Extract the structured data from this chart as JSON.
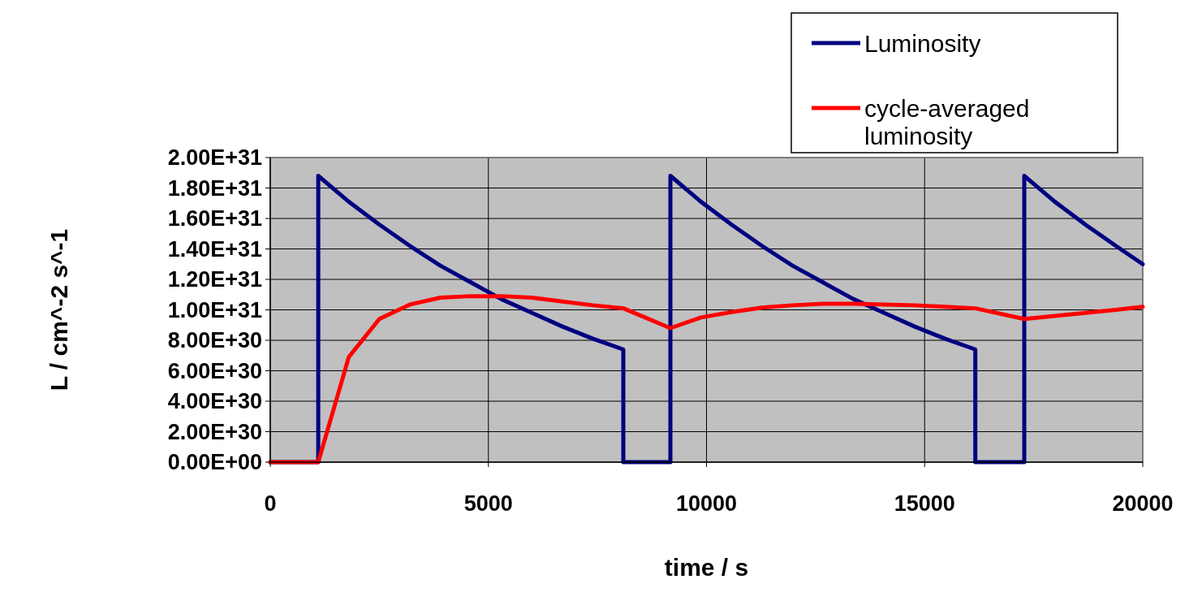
{
  "chart_data": {
    "type": "line",
    "xlabel": "time / s",
    "ylabel": "L / cm^-2 s^-1",
    "xlim": [
      0,
      20000
    ],
    "xticks": [
      0,
      5000,
      10000,
      15000,
      20000
    ],
    "ylim": [
      0,
      2e+31
    ],
    "yticks": [
      {
        "value": 0,
        "label": "0.00E+00"
      },
      {
        "value": 2e+30,
        "label": "2.00E+30"
      },
      {
        "value": 4e+30,
        "label": "4.00E+30"
      },
      {
        "value": 6e+30,
        "label": "6.00E+30"
      },
      {
        "value": 8e+30,
        "label": "8.00E+30"
      },
      {
        "value": 1e+31,
        "label": "1.00E+31"
      },
      {
        "value": 1.2e+31,
        "label": "1.20E+31"
      },
      {
        "value": 1.4e+31,
        "label": "1.40E+31"
      },
      {
        "value": 1.6e+31,
        "label": "1.60E+31"
      },
      {
        "value": 1.8e+31,
        "label": "1.80E+31"
      },
      {
        "value": 2e+31,
        "label": "2.00E+31"
      }
    ],
    "grid": true,
    "legend": "top right",
    "series": [
      {
        "name": "Luminosity",
        "color": "#000080",
        "x": [
          0,
          1100,
          1100,
          1800,
          2500,
          3200,
          3900,
          4600,
          5300,
          6000,
          6700,
          7400,
          8093,
          8093,
          9172,
          9172,
          9872,
          10572,
          11272,
          11972,
          12672,
          13372,
          14072,
          14772,
          15472,
          16162,
          16162,
          17284,
          17284,
          17984,
          18684,
          19384,
          20000
        ],
        "values": [
          0,
          0,
          1.88e+31,
          1.71e+31,
          1.56e+31,
          1.42e+31,
          1.29e+31,
          1.18e+31,
          1.07e+31,
          9.8e+30,
          8.9e+30,
          8.1e+30,
          7.4e+30,
          0,
          0,
          1.88e+31,
          1.71e+31,
          1.56e+31,
          1.42e+31,
          1.29e+31,
          1.18e+31,
          1.07e+31,
          9.8e+30,
          8.9e+30,
          8.1e+30,
          7.4e+30,
          0,
          0,
          1.88e+31,
          1.71e+31,
          1.56e+31,
          1.42e+31,
          1.3e+31
        ]
      },
      {
        "name": "cycle-averaged luminosity",
        "color": "#ff0000",
        "x": [
          0,
          1100,
          1800,
          2500,
          3200,
          3900,
          4600,
          5300,
          6000,
          6700,
          7400,
          8093,
          9172,
          9872,
          10572,
          11272,
          11972,
          12672,
          13372,
          14072,
          14772,
          15472,
          16162,
          17284,
          17984,
          18684,
          19384,
          20000
        ],
        "values": [
          0,
          0,
          6.9e+30,
          9.4e+30,
          1.035e+31,
          1.08e+31,
          1.09e+31,
          1.09e+31,
          1.08e+31,
          1.055e+31,
          1.03e+31,
          1.01e+31,
          8.8e+30,
          9.5e+30,
          9.85e+30,
          1.015e+31,
          1.03e+31,
          1.04e+31,
          1.04e+31,
          1.035e+31,
          1.03e+31,
          1.02e+31,
          1.01e+31,
          9.4e+30,
          9.6e+30,
          9.8e+30,
          1e+31,
          1.02e+31
        ]
      }
    ]
  }
}
